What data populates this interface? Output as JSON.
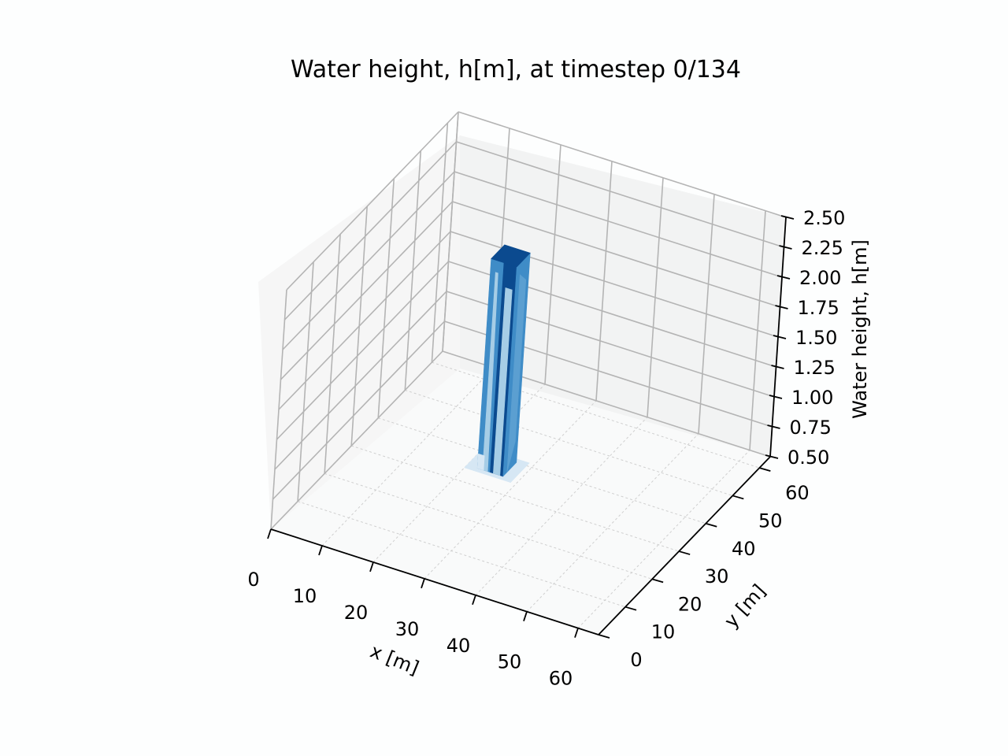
{
  "chart_data": {
    "type": "surface3d",
    "title": "Water height, h[m], at timestep 0/134",
    "xlabel": "x [m]",
    "ylabel": "y [m]",
    "zlabel": "Water height, h[m]",
    "xlim": [
      0,
      64
    ],
    "ylim": [
      0,
      64
    ],
    "zlim": [
      0.5,
      2.5
    ],
    "x_ticks": [
      0,
      10,
      20,
      30,
      40,
      50,
      60
    ],
    "y_ticks": [
      0,
      10,
      20,
      30,
      40,
      50,
      60
    ],
    "z_ticks": [
      "0.50",
      "0.75",
      "1.00",
      "1.25",
      "1.50",
      "1.75",
      "2.00",
      "2.25",
      "2.50"
    ],
    "colormap": "Blues",
    "grid": true,
    "surface": {
      "base_height": 0.5,
      "column_height": 2.25,
      "column_x_range": [
        22,
        27
      ],
      "column_y_range": [
        35,
        40
      ]
    },
    "colors": {
      "column_dark": "#0b4a8f",
      "column_mid": "#3f8cc7",
      "column_light": "#a6cde6",
      "column_pale": "#d6e7f4"
    }
  }
}
